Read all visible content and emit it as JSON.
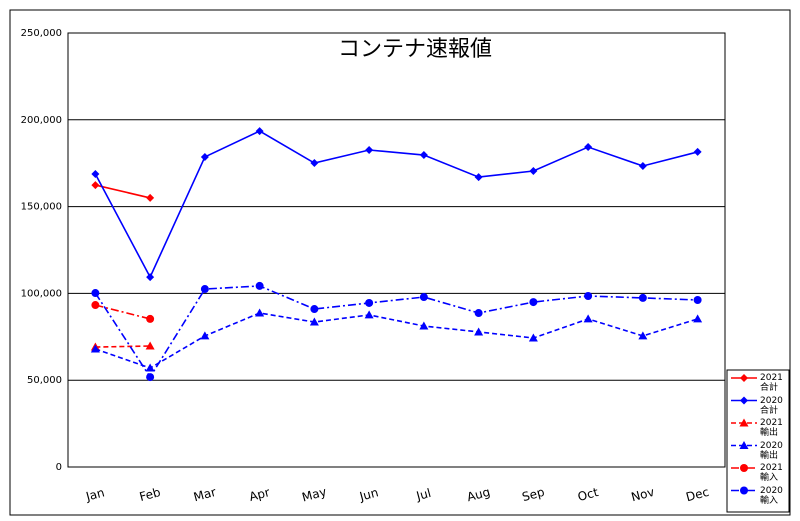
{
  "chart_data": {
    "type": "line",
    "title": "コンテナ速報値",
    "categories": [
      "Jan",
      "Feb",
      "Mar",
      "Apr",
      "May",
      "Jun",
      "Jul",
      "Aug",
      "Sep",
      "Oct",
      "Nov",
      "Dec"
    ],
    "series": [
      {
        "name": "2021 合計",
        "color": "#ff0000",
        "marker": "diamond",
        "line_style": "solid",
        "values": [
          162400,
          155000,
          null,
          null,
          null,
          null,
          null,
          null,
          null,
          null,
          null,
          null
        ]
      },
      {
        "name": "2020 合計",
        "color": "#0000ff",
        "marker": "diamond",
        "line_style": "solid",
        "values": [
          168800,
          109400,
          178600,
          193500,
          175100,
          182600,
          179700,
          167000,
          170500,
          184300,
          173400,
          181500
        ]
      },
      {
        "name": "2021 輸出",
        "color": "#ff0000",
        "marker": "triangle",
        "line_style": "dashed",
        "values": [
          69100,
          69700,
          null,
          null,
          null,
          null,
          null,
          null,
          null,
          null,
          null,
          null
        ]
      },
      {
        "name": "2020 輸出",
        "color": "#0000ff",
        "marker": "triangle",
        "line_style": "dashed",
        "values": [
          68000,
          57000,
          75500,
          88700,
          83500,
          87600,
          81200,
          77800,
          74300,
          85300,
          75500,
          85300
        ]
      },
      {
        "name": "2021 輸入",
        "color": "#ff0000",
        "marker": "circle",
        "line_style": "dashdot",
        "values": [
          93300,
          85300,
          null,
          null,
          null,
          null,
          null,
          null,
          null,
          null,
          null,
          null
        ]
      },
      {
        "name": "2020 輸入",
        "color": "#0000ff",
        "marker": "circle",
        "line_style": "dashdot",
        "values": [
          100200,
          51800,
          102500,
          104300,
          91000,
          94500,
          97900,
          88700,
          95000,
          98500,
          97400,
          96200
        ]
      }
    ],
    "ylim": [
      0,
      250000
    ],
    "yticks": [
      0,
      {
        "value": 50000,
        "label": "50,000"
      },
      {
        "value": 100000,
        "label": "100,000"
      },
      {
        "value": 150000,
        "label": "150,000"
      },
      {
        "value": 200000,
        "label": "200,000"
      },
      {
        "value": 250000,
        "label": "250,000"
      }
    ],
    "grid": true,
    "legend": "bottom-right"
  }
}
